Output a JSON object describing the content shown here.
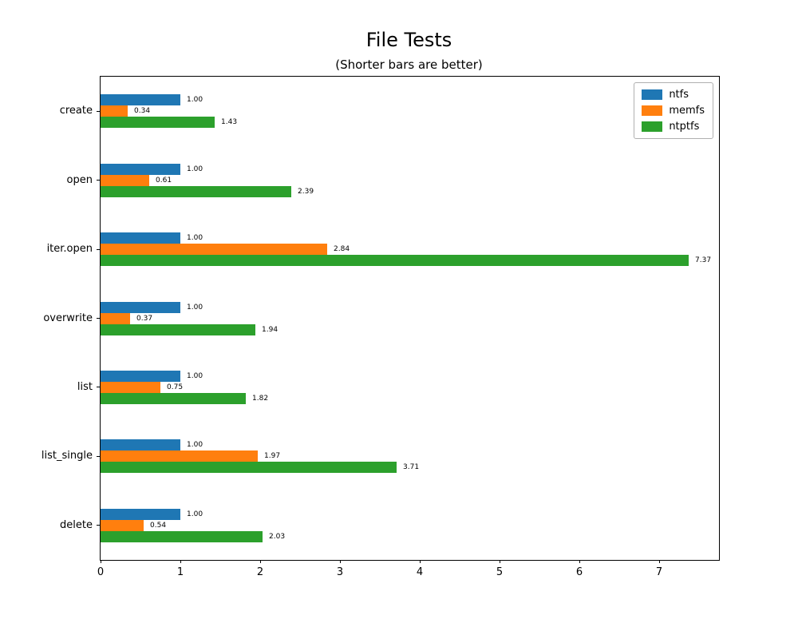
{
  "chart_data": {
    "type": "bar",
    "orientation": "horizontal",
    "title": "File Tests",
    "subtitle": "(Shorter bars are better)",
    "categories": [
      "create",
      "open",
      "iter.open",
      "overwrite",
      "list",
      "list_single",
      "delete"
    ],
    "series": [
      {
        "name": "ntfs",
        "color": "#1f77b4",
        "values": [
          1.0,
          1.0,
          1.0,
          1.0,
          1.0,
          1.0,
          1.0
        ]
      },
      {
        "name": "memfs",
        "color": "#ff7f0e",
        "values": [
          0.34,
          0.61,
          2.84,
          0.37,
          0.75,
          1.97,
          0.54
        ]
      },
      {
        "name": "ntptfs",
        "color": "#2ca02c",
        "values": [
          1.43,
          2.39,
          7.37,
          1.94,
          1.82,
          3.71,
          2.03
        ]
      }
    ],
    "value_label_format": "2dp",
    "xlim": [
      0,
      7.75
    ],
    "x_ticks": [
      0,
      1,
      2,
      3,
      4,
      5,
      6,
      7
    ],
    "grid": false,
    "legend_position": "upper-right",
    "background_color": "#ffffff",
    "spine_color": "#000000"
  }
}
